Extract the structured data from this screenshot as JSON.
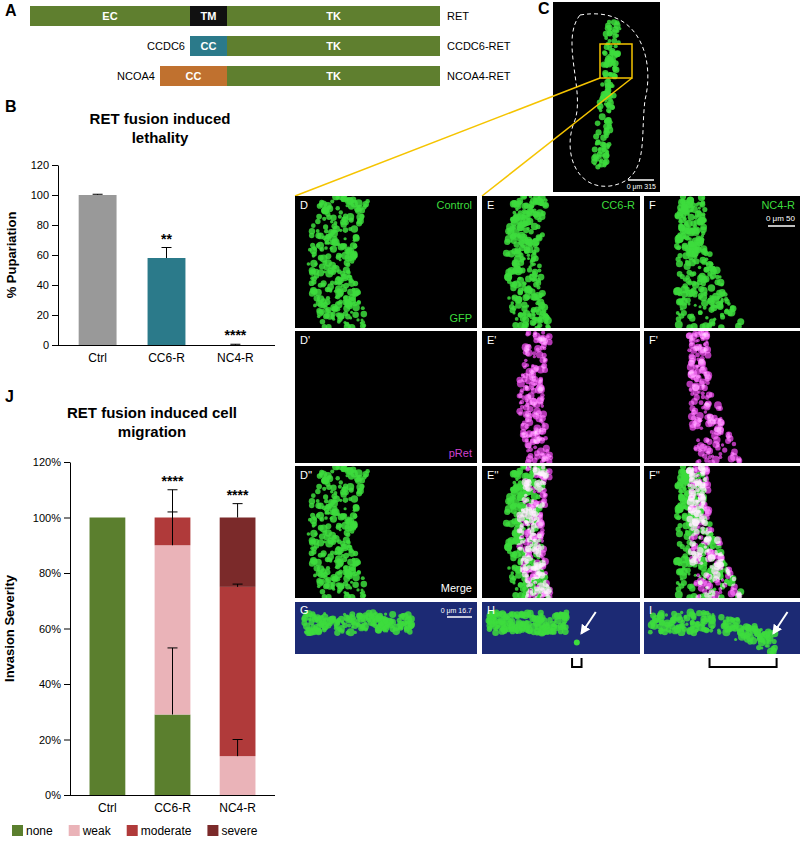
{
  "figure_labels": [
    "A",
    "B",
    "C",
    "J"
  ],
  "diagram": {
    "rows": [
      {
        "name": "RET",
        "domains": [
          {
            "label": "EC",
            "color": "#5f7f2f"
          },
          {
            "label": "TM",
            "color": "#111111"
          },
          {
            "label": "TK",
            "color": "#5f7f2f"
          }
        ]
      },
      {
        "name": "CCDC6-RET",
        "partner": "CCDC6",
        "domains": [
          {
            "label": "CC",
            "color": "#2b7a8a"
          },
          {
            "label": "TK",
            "color": "#5f7f2f"
          }
        ]
      },
      {
        "name": "NCOA4-RET",
        "partner": "NCOA4",
        "domains": [
          {
            "label": "CC",
            "color": "#c0712f"
          },
          {
            "label": "TK",
            "color": "#5f7f2f"
          }
        ]
      }
    ]
  },
  "micrographs": {
    "overview_scale_bar": "0 μm 315",
    "panel_labels": [
      [
        "D",
        "E",
        "F"
      ],
      [
        "D'",
        "E'",
        "F'"
      ],
      [
        "D''",
        "E''",
        "F''"
      ],
      [
        "G",
        "H",
        "I"
      ]
    ],
    "columns": [
      "Control",
      "CC6-R",
      "NC4-R"
    ],
    "channels": [
      {
        "label": "GFP",
        "color": "#3ddc3d"
      },
      {
        "label": "pRet",
        "color": "#d040d0"
      },
      {
        "label": "Merge",
        "color": "#ffffff"
      }
    ],
    "scale_bars": [
      "0 μm 50",
      "0 μm 16.7"
    ]
  },
  "chart_data": [
    {
      "type": "bar",
      "title": "RET fusion induced lethality",
      "y_label": "% Pupariation",
      "categories": [
        "Ctrl",
        "CC6-R",
        "NC4-R"
      ],
      "values": [
        100,
        58,
        0
      ],
      "errors": [
        0.5,
        7,
        0.5
      ],
      "colors": [
        "#999999",
        "#2b7a8a",
        "#2b7a8a"
      ],
      "significance": [
        null,
        "**",
        "****"
      ],
      "ylim": [
        0,
        120
      ],
      "yticks": [
        0,
        20,
        40,
        60,
        80,
        100,
        120
      ],
      "grid": false
    },
    {
      "type": "bar",
      "stacked": true,
      "title": "RET fusion induced cell migration",
      "y_label": "Invasion Severity",
      "categories": [
        "Ctrl",
        "CC6-R",
        "NC4-R"
      ],
      "series": [
        {
          "name": "none",
          "color": "#5b7f2e",
          "values": [
            100,
            29,
            0
          ],
          "errors": [
            0,
            24,
            0
          ]
        },
        {
          "name": "weak",
          "color": "#eab3b8",
          "values": [
            0,
            61,
            14
          ],
          "errors": [
            0,
            12,
            6
          ]
        },
        {
          "name": "moderate",
          "color": "#b03a3a",
          "values": [
            0,
            10,
            61
          ],
          "errors": [
            0,
            10,
            1
          ]
        },
        {
          "name": "severe",
          "color": "#7b2a2a",
          "values": [
            0,
            0,
            25
          ],
          "errors": [
            0,
            0,
            5
          ]
        }
      ],
      "significance": [
        null,
        "****",
        "****"
      ],
      "ylim": [
        0,
        120
      ],
      "yticks": [
        {
          "value": 0,
          "label": "0%"
        },
        {
          "value": 20,
          "label": "20%"
        },
        {
          "value": 40,
          "label": "40%"
        },
        {
          "value": 60,
          "label": "60%"
        },
        {
          "value": 80,
          "label": "80%"
        },
        {
          "value": 100,
          "label": "100%"
        },
        {
          "value": 120,
          "label": "120%"
        }
      ],
      "legend": "bottom",
      "grid": false
    }
  ]
}
